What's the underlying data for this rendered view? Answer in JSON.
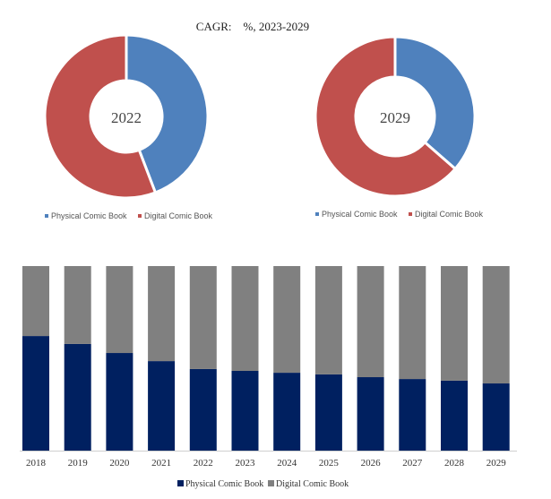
{
  "chart_data": [
    {
      "type": "pie",
      "variant": "donut",
      "title": "CAGR:    %, 2023-2029",
      "center_label": "2022",
      "categories": [
        "Physical Comic Book",
        "Digital Comic Book"
      ],
      "values": [
        44.2,
        55.8
      ],
      "colors": [
        "#4f81bd",
        "#c0504d"
      ],
      "legend": "bottom"
    },
    {
      "type": "pie",
      "variant": "donut",
      "center_label": "2029",
      "categories": [
        "Physical Comic Book",
        "Digital Comic Book"
      ],
      "values": [
        36.4,
        63.6
      ],
      "colors": [
        "#4f81bd",
        "#c0504d"
      ],
      "legend": "bottom"
    },
    {
      "type": "bar",
      "stacked": "percent",
      "categories": [
        "2018",
        "2019",
        "2020",
        "2021",
        "2022",
        "2023",
        "2024",
        "2025",
        "2026",
        "2027",
        "2028",
        "2029"
      ],
      "series": [
        {
          "name": "Physical Comic Book",
          "color": "#002060",
          "values": [
            62.1,
            57.8,
            52.9,
            48.5,
            44.2,
            43.2,
            42.2,
            41.3,
            39.8,
            38.8,
            37.9,
            36.4
          ]
        },
        {
          "name": "Digital Comic Book",
          "color": "#808080",
          "values": [
            37.9,
            42.2,
            47.1,
            51.5,
            55.8,
            56.8,
            57.8,
            58.7,
            60.2,
            61.2,
            62.1,
            63.6
          ]
        }
      ],
      "ylim": [
        0,
        100
      ],
      "legend": "bottom",
      "grid": false
    }
  ]
}
